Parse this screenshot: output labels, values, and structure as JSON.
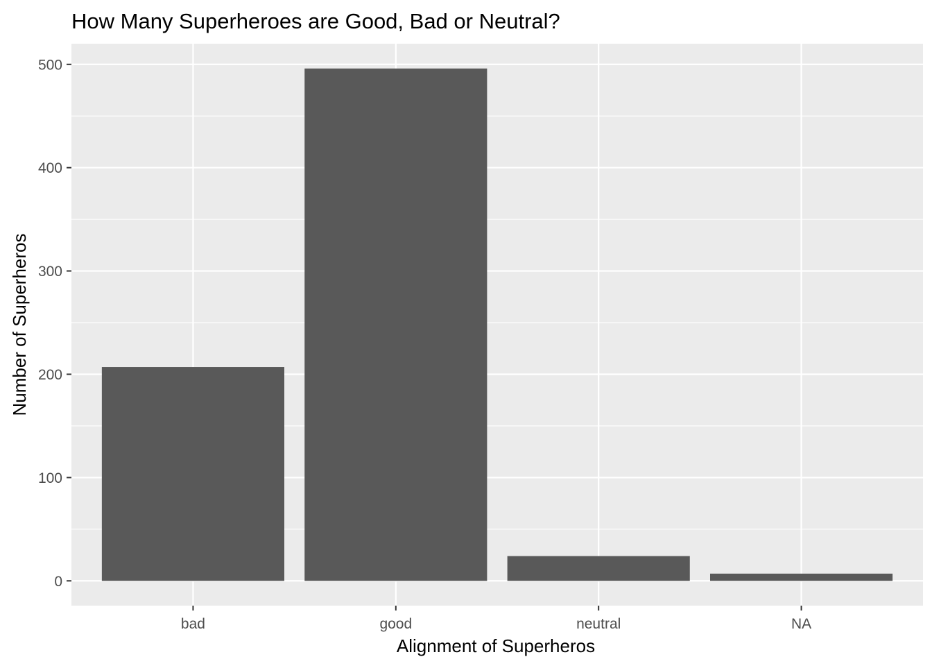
{
  "chart_data": {
    "type": "bar",
    "title": "How Many Superheroes are Good, Bad or Neutral?",
    "xlabel": "Alignment of Superheros",
    "ylabel": "Number of Superheros",
    "categories": [
      "bad",
      "good",
      "neutral",
      "NA"
    ],
    "values": [
      207,
      496,
      24,
      7
    ],
    "ylim": [
      -24,
      520
    ],
    "yticks": [
      0,
      100,
      200,
      300,
      400,
      500
    ],
    "grid": true,
    "legend": "none",
    "colors": {
      "bar": "#595959",
      "panel": "#ebebeb",
      "grid": "#ffffff",
      "tick": "#333333"
    }
  }
}
